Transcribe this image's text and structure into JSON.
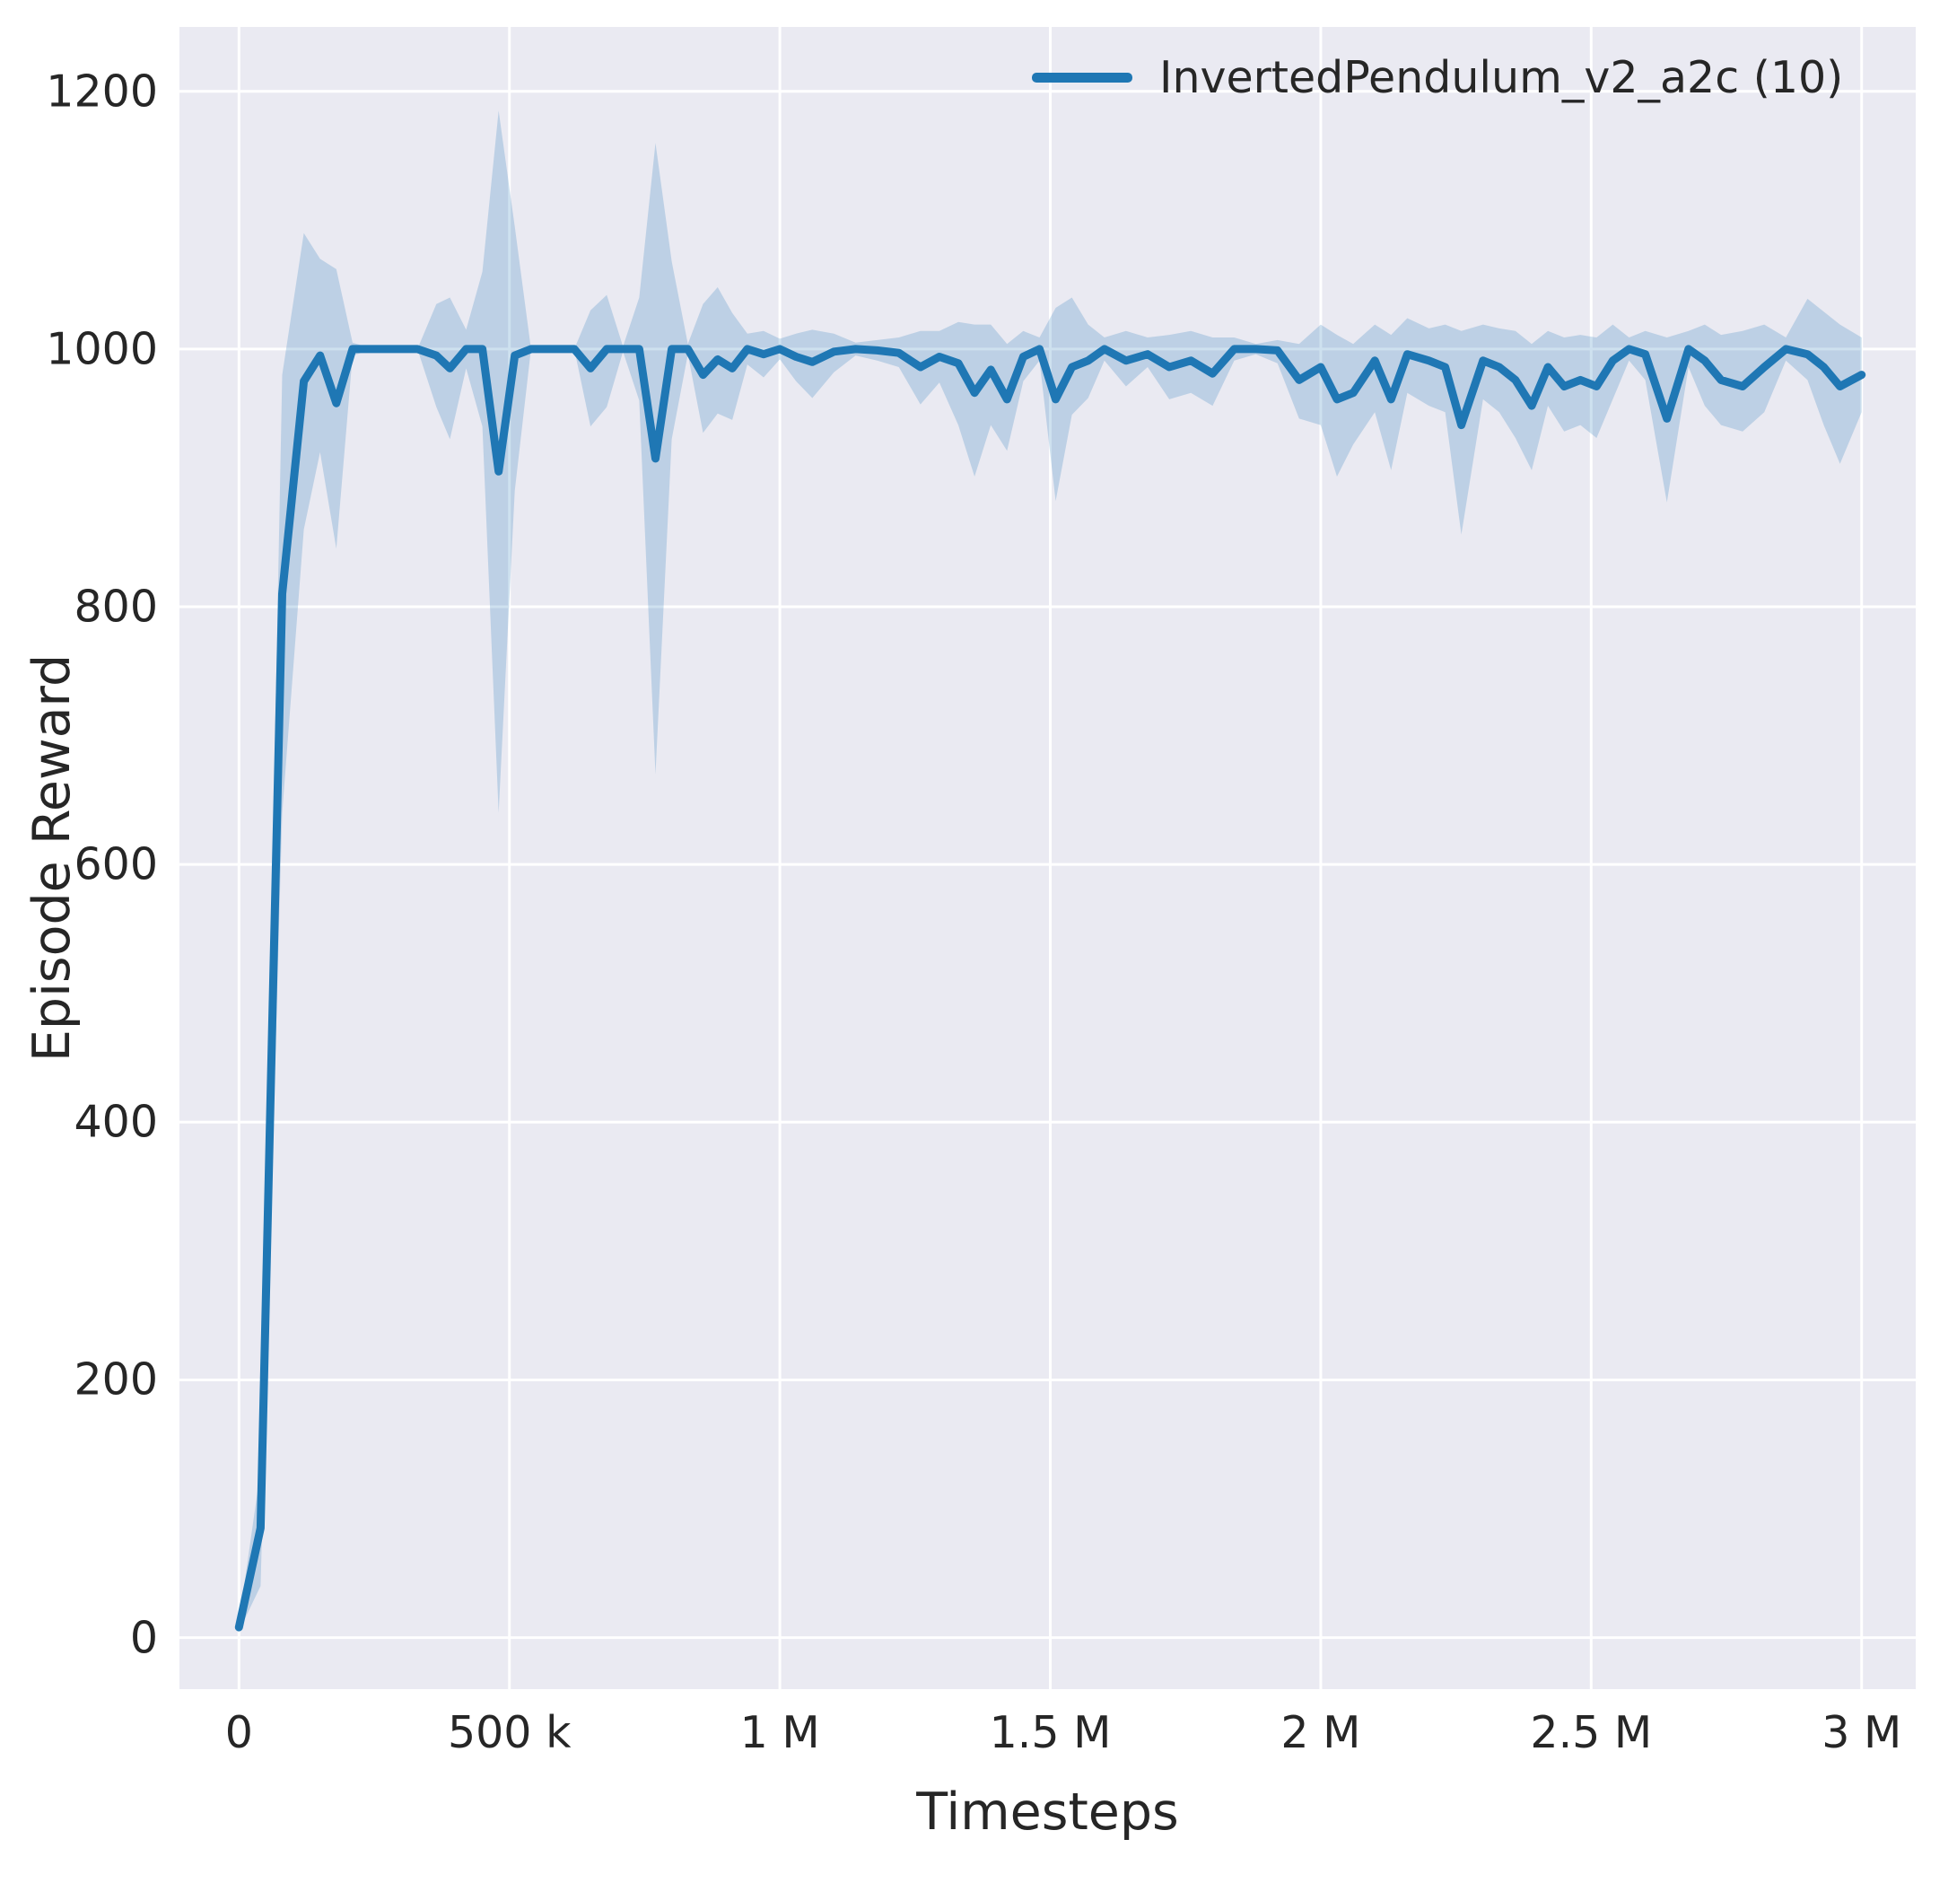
{
  "chart_data": {
    "type": "line",
    "title": "",
    "xlabel": "Timesteps",
    "ylabel": "Episode Reward",
    "grid": true,
    "legend_position": "upper right",
    "xlim": [
      -110000,
      3100000
    ],
    "ylim": [
      -40,
      1250
    ],
    "xticks": {
      "values": [
        0,
        500000,
        1000000,
        1500000,
        2000000,
        2500000,
        3000000
      ],
      "labels": [
        "0",
        "500 k",
        "1 M",
        "1.5 M",
        "2 M",
        "2.5 M",
        "3 M"
      ]
    },
    "yticks": {
      "values": [
        0,
        200,
        400,
        600,
        800,
        1000,
        1200
      ],
      "labels": [
        "0",
        "200",
        "400",
        "600",
        "800",
        "1000",
        "1200"
      ]
    },
    "style": {
      "plot_bg": "#eaeaf2",
      "grid_color": "#ffffff",
      "line_color": "#1f77b4",
      "band_opacity": 0.22,
      "text_color": "#262626"
    },
    "series": [
      {
        "name": "InvertedPendulum_v2_a2c (10)",
        "x": [
          0,
          40000,
          80000,
          120000,
          150000,
          180000,
          210000,
          250000,
          290000,
          330000,
          365000,
          390000,
          420000,
          450000,
          480000,
          510000,
          540000,
          580000,
          620000,
          650000,
          680000,
          710000,
          740000,
          770000,
          800000,
          830000,
          858000,
          885000,
          912000,
          940000,
          970000,
          1000000,
          1030000,
          1060000,
          1100000,
          1140000,
          1180000,
          1220000,
          1260000,
          1295000,
          1330000,
          1360000,
          1390000,
          1420000,
          1450000,
          1480000,
          1510000,
          1540000,
          1570000,
          1600000,
          1640000,
          1680000,
          1720000,
          1760000,
          1800000,
          1840000,
          1880000,
          1920000,
          1960000,
          2000000,
          2030000,
          2060000,
          2100000,
          2130000,
          2160000,
          2200000,
          2230000,
          2260000,
          2300000,
          2330000,
          2360000,
          2390000,
          2420000,
          2450000,
          2480000,
          2510000,
          2540000,
          2570000,
          2600000,
          2640000,
          2680000,
          2710000,
          2740000,
          2780000,
          2820000,
          2860000,
          2900000,
          2930000,
          2960000,
          3000000
        ],
        "mean": [
          8,
          85,
          810,
          975,
          995,
          958,
          1000,
          1000,
          1000,
          1000,
          995,
          985,
          1000,
          1000,
          905,
          995,
          1000,
          1000,
          1000,
          985,
          1000,
          1000,
          1000,
          915,
          1000,
          1000,
          980,
          992,
          985,
          1000,
          996,
          1000,
          994,
          990,
          998,
          1000,
          999,
          997,
          986,
          994,
          989,
          966,
          984,
          961,
          994,
          1000,
          961,
          986,
          991,
          1000,
          991,
          996,
          986,
          991,
          981,
          1000,
          1000,
          999,
          976,
          986,
          961,
          966,
          991,
          961,
          996,
          991,
          986,
          941,
          991,
          986,
          976,
          956,
          986,
          971,
          976,
          971,
          991,
          1000,
          996,
          946,
          1000,
          991,
          976,
          971,
          986,
          1000,
          996,
          986,
          971,
          980
        ],
        "lower": [
          5,
          40,
          640,
          860,
          920,
          845,
          995,
          1000,
          1000,
          1000,
          955,
          930,
          985,
          940,
          640,
          890,
          1000,
          1000,
          1000,
          940,
          955,
          998,
          960,
          670,
          930,
          996,
          935,
          950,
          945,
          988,
          978,
          992,
          975,
          962,
          982,
          995,
          991,
          986,
          957,
          974,
          941,
          901,
          941,
          921,
          975,
          991,
          882,
          949,
          962,
          991,
          971,
          986,
          961,
          966,
          956,
          991,
          996,
          989,
          946,
          941,
          901,
          926,
          951,
          906,
          966,
          956,
          951,
          856,
          961,
          951,
          931,
          906,
          956,
          936,
          941,
          931,
          961,
          991,
          976,
          881,
          986,
          956,
          941,
          936,
          951,
          991,
          976,
          941,
          911,
          951
        ],
        "upper": [
          12,
          130,
          980,
          1090,
          1070,
          1062,
          1005,
          1000,
          1000,
          1000,
          1035,
          1040,
          1015,
          1060,
          1185,
          1095,
          1000,
          1000,
          1000,
          1030,
          1042,
          1002,
          1040,
          1160,
          1068,
          1004,
          1035,
          1048,
          1028,
          1012,
          1014,
          1008,
          1012,
          1015,
          1012,
          1005,
          1007,
          1009,
          1014,
          1014,
          1021,
          1019,
          1019,
          1004,
          1014,
          1009,
          1032,
          1040,
          1019,
          1009,
          1014,
          1009,
          1011,
          1014,
          1009,
          1009,
          1004,
          1007,
          1004,
          1019,
          1011,
          1004,
          1019,
          1011,
          1024,
          1016,
          1019,
          1014,
          1019,
          1016,
          1014,
          1004,
          1014,
          1009,
          1011,
          1009,
          1019,
          1009,
          1014,
          1009,
          1014,
          1019,
          1011,
          1014,
          1019,
          1009,
          1039,
          1029,
          1019,
          1009
        ]
      }
    ]
  }
}
